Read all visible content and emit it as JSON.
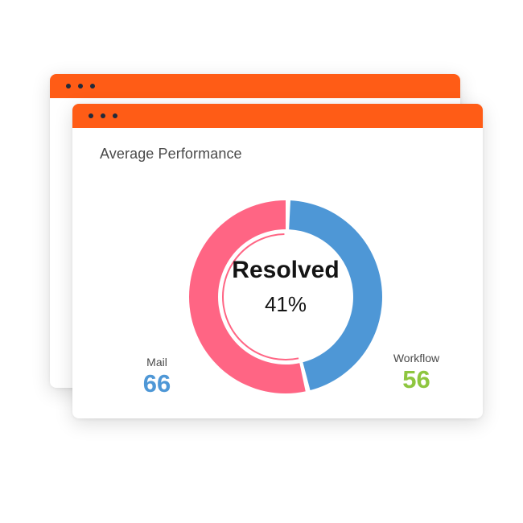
{
  "card": {
    "title": "Average Performance"
  },
  "chart_data": {
    "type": "pie",
    "center_label": "Resolved",
    "center_value": "41%",
    "categories": [
      "Mail",
      "Workflow"
    ],
    "values": [
      66,
      56
    ],
    "colors": [
      "#ff6584",
      "#4e97d6"
    ]
  },
  "stats": {
    "mail": {
      "label": "Mail",
      "value": "66",
      "color": "#4e97d6"
    },
    "workflow": {
      "label": "Workflow",
      "value": "56",
      "color": "#8ec63f"
    }
  },
  "colors": {
    "titlebar": "#ff5c16",
    "dots": "#222a3a"
  }
}
